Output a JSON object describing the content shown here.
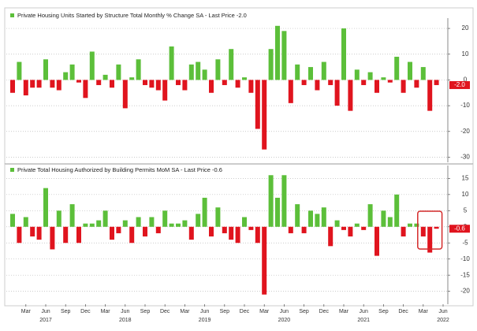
{
  "chart_data": [
    {
      "type": "bar",
      "title": "Private Housing Units Started by Structure Total Monthly % Change SA - Last Price -2.0",
      "positive_color": "#5cbf3a",
      "negative_color": "#e0141e",
      "values": [
        -5,
        7,
        -6,
        -3,
        -3,
        8,
        -3,
        -4,
        3,
        6,
        -1,
        -7,
        11,
        -2,
        2,
        -3,
        6,
        -11,
        1,
        8,
        -2,
        -3,
        -4,
        -8,
        13,
        -2,
        -4,
        6,
        7,
        4,
        -5,
        8,
        -2,
        12,
        -3,
        1,
        -5,
        -19,
        -27,
        12,
        21,
        19,
        -9,
        6,
        -2,
        5,
        -4,
        7,
        -2,
        -10,
        20,
        -12,
        4,
        -2,
        3,
        -5,
        1,
        -1,
        9,
        -5,
        7,
        -3,
        5,
        -12,
        -2,
        null
      ],
      "last_value_label": "-2.0",
      "ylim": [
        -32,
        24
      ],
      "yticks": [
        20,
        10,
        0,
        -10,
        -20,
        -30
      ],
      "grid": true
    },
    {
      "type": "bar",
      "title": "Private Total Housing Authorized by Building Permits MoM SA - Last Price -0.6",
      "positive_color": "#5cbf3a",
      "negative_color": "#e0141e",
      "categories": [
        null,
        null,
        "Mar",
        null,
        null,
        "Jun",
        null,
        null,
        "Sep",
        null,
        null,
        "Dec",
        null,
        null,
        "Mar",
        null,
        null,
        "Jun",
        null,
        null,
        "Sep",
        null,
        null,
        "Dec",
        null,
        null,
        "Mar",
        null,
        null,
        "Jun",
        null,
        null,
        "Sep",
        null,
        null,
        "Dec",
        null,
        null,
        "Mar",
        null,
        null,
        "Jun",
        null,
        null,
        "Sep",
        null,
        null,
        "Dec",
        null,
        null,
        "Mar",
        null,
        null,
        "Jun",
        null,
        null,
        "Sep",
        null,
        null,
        "Dec",
        null,
        null,
        "Mar",
        null,
        null,
        "Jun"
      ],
      "years": [
        "2017",
        "2018",
        "2019",
        "2020",
        "2021",
        "2022"
      ],
      "values": [
        4,
        -5,
        3,
        -3,
        -4,
        12,
        -7,
        5,
        -5,
        7,
        -5,
        1,
        1,
        2,
        5,
        -4,
        -2,
        2,
        -5,
        3,
        -3,
        3,
        -2,
        5,
        1,
        1,
        2,
        -4,
        4,
        9,
        -3,
        6,
        -2,
        -4,
        -5,
        3,
        -1,
        -5,
        -21,
        16,
        9,
        16,
        -2,
        7,
        -2,
        5,
        4,
        6,
        -6,
        2,
        -1,
        -3,
        1,
        -1,
        7,
        -9,
        5,
        3,
        10,
        -3,
        1,
        1,
        -3,
        -8,
        -0.6,
        null
      ],
      "last_value_label": "-0.6",
      "highlight_last": 3,
      "ylim": [
        -24,
        19
      ],
      "yticks": [
        15,
        10,
        5,
        0,
        -5,
        -10,
        -15,
        -20
      ],
      "grid": true
    }
  ]
}
